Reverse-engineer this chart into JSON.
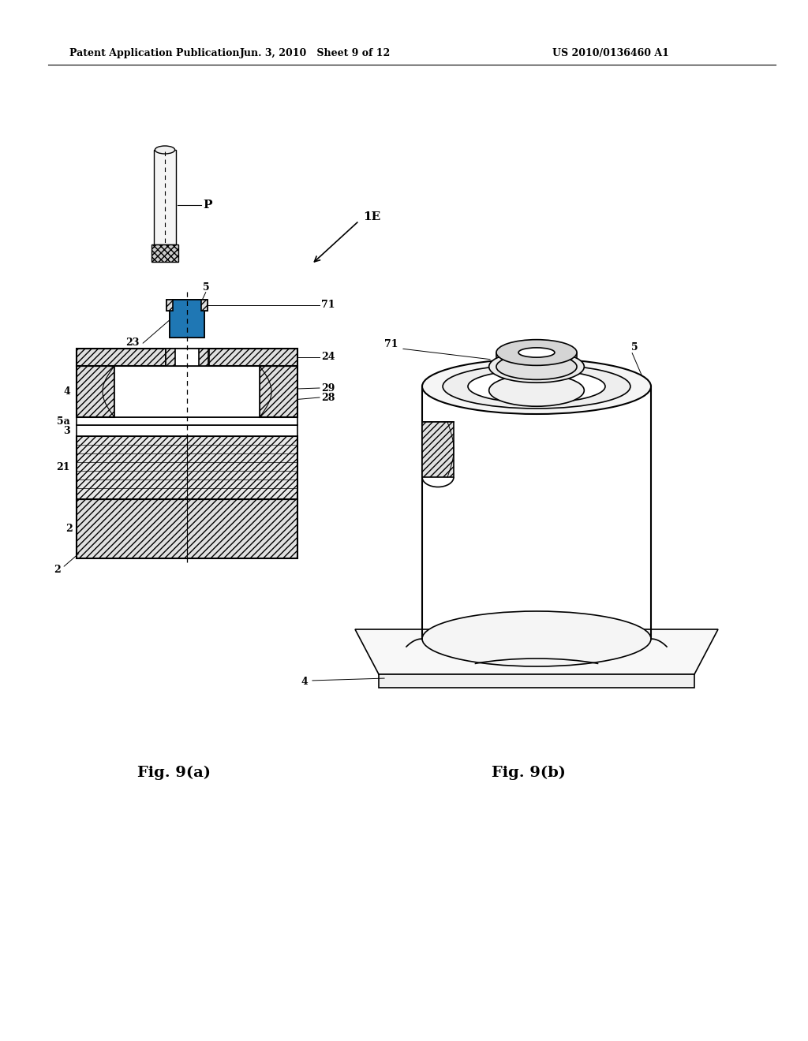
{
  "bg_color": "#ffffff",
  "header_left": "Patent Application Publication",
  "header_mid": "Jun. 3, 2010   Sheet 9 of 12",
  "header_right": "US 2010/0136460 A1",
  "fig_a_label": "Fig. 9(a)",
  "fig_b_label": "Fig. 9(b)",
  "label_P": "P",
  "label_1E": "1E"
}
